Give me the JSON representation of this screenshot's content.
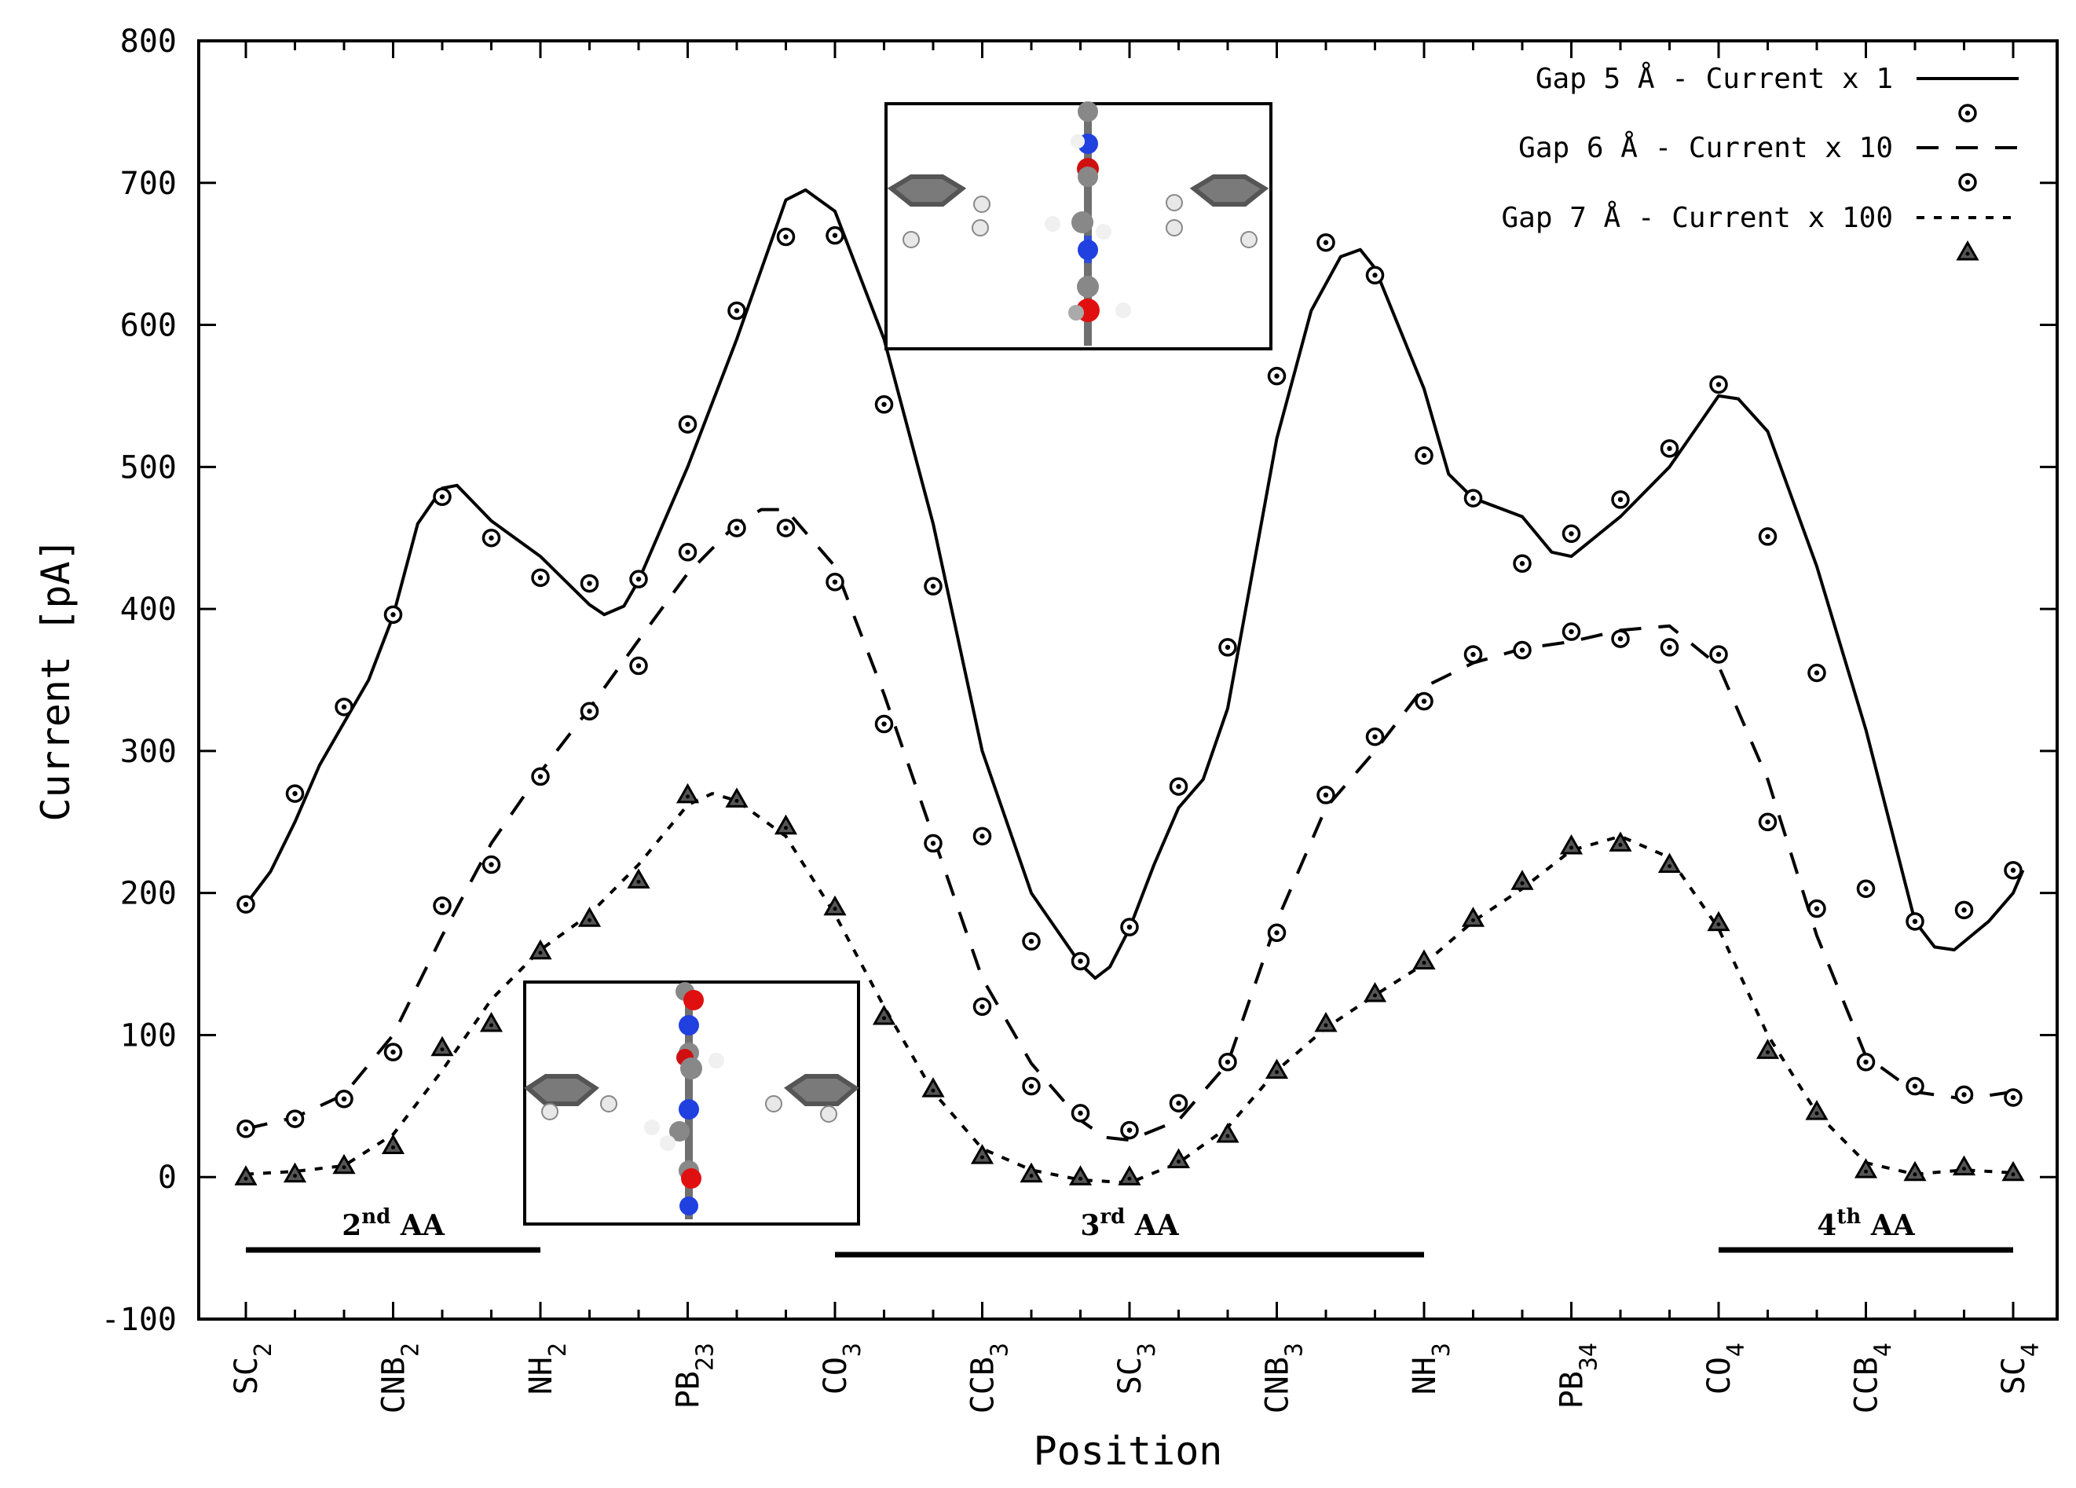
{
  "chart_data": {
    "type": "line",
    "title": "",
    "xlabel": "Position",
    "ylabel": "Current [pA]",
    "ylim": [
      -100,
      800
    ],
    "yticks": [
      -100,
      0,
      100,
      200,
      300,
      400,
      500,
      600,
      700,
      800
    ],
    "xticks": [
      {
        "base": "SC",
        "sub": "2",
        "x": 0
      },
      {
        "base": "CNB",
        "sub": "2",
        "x": 3
      },
      {
        "base": "NH",
        "sub": "2",
        "x": 6
      },
      {
        "base": "PB",
        "sub": "23",
        "x": 9
      },
      {
        "base": "CO",
        "sub": "3",
        "x": 12
      },
      {
        "base": "CCB",
        "sub": "3",
        "x": 15
      },
      {
        "base": "SC",
        "sub": "3",
        "x": 18
      },
      {
        "base": "CNB",
        "sub": "3",
        "x": 21
      },
      {
        "base": "NH",
        "sub": "3",
        "x": 24
      },
      {
        "base": "PB",
        "sub": "34",
        "x": 27
      },
      {
        "base": "CO",
        "sub": "4",
        "x": 30
      },
      {
        "base": "CCB",
        "sub": "4",
        "x": 33
      },
      {
        "base": "SC",
        "sub": "4",
        "x": 36
      }
    ],
    "xlim": [
      -1,
      37
    ],
    "series": [
      {
        "name": "Gap 5 Å - Current x 1",
        "line_style": "solid",
        "marker": "circle",
        "points": [
          192,
          270,
          331,
          396,
          479,
          450,
          422,
          418,
          421,
          530,
          610,
          662,
          663,
          544,
          416,
          240,
          166,
          152,
          176,
          275,
          373,
          564,
          658,
          635,
          508,
          478,
          432,
          453,
          477,
          513,
          558,
          451,
          355,
          203,
          180,
          188,
          216
        ],
        "curve": [
          [
            0,
            192
          ],
          [
            0.5,
            215
          ],
          [
            1,
            250
          ],
          [
            1.5,
            290
          ],
          [
            2,
            320
          ],
          [
            2.5,
            350
          ],
          [
            3,
            395
          ],
          [
            3.5,
            460
          ],
          [
            4,
            485
          ],
          [
            4.3,
            487
          ],
          [
            5,
            462
          ],
          [
            6,
            437
          ],
          [
            6.5,
            420
          ],
          [
            7,
            403
          ],
          [
            7.3,
            396
          ],
          [
            7.7,
            402
          ],
          [
            8,
            420
          ],
          [
            9,
            500
          ],
          [
            10,
            590
          ],
          [
            11,
            688
          ],
          [
            11.4,
            695
          ],
          [
            12,
            680
          ],
          [
            13,
            590
          ],
          [
            14,
            460
          ],
          [
            15,
            300
          ],
          [
            16,
            200
          ],
          [
            17,
            150
          ],
          [
            17.3,
            140
          ],
          [
            17.6,
            148
          ],
          [
            18,
            175
          ],
          [
            18.5,
            220
          ],
          [
            19,
            260
          ],
          [
            19.5,
            280
          ],
          [
            20,
            330
          ],
          [
            21,
            520
          ],
          [
            21.7,
            610
          ],
          [
            22.3,
            648
          ],
          [
            22.7,
            653
          ],
          [
            23,
            640
          ],
          [
            24,
            555
          ],
          [
            24.5,
            495
          ],
          [
            25,
            478
          ],
          [
            26,
            465
          ],
          [
            26.6,
            440
          ],
          [
            27,
            437
          ],
          [
            28,
            465
          ],
          [
            29,
            500
          ],
          [
            30,
            550
          ],
          [
            30.4,
            548
          ],
          [
            31,
            525
          ],
          [
            32,
            430
          ],
          [
            33,
            315
          ],
          [
            34,
            180
          ],
          [
            34.4,
            162
          ],
          [
            34.8,
            160
          ],
          [
            35.5,
            180
          ],
          [
            36,
            200
          ],
          [
            36.2,
            216
          ]
        ]
      },
      {
        "name": "Gap 6 Å - Current x 10",
        "line_style": "dashed",
        "marker": "circle",
        "points": [
          34,
          41,
          55,
          88,
          191,
          220,
          282,
          328,
          360,
          440,
          457,
          457,
          419,
          319,
          235,
          120,
          64,
          45,
          33,
          52,
          81,
          172,
          269,
          310,
          335,
          368,
          371,
          384,
          379,
          373,
          368,
          250,
          189,
          81,
          64,
          58,
          56
        ],
        "curve": [
          [
            0,
            34
          ],
          [
            1,
            42
          ],
          [
            2,
            58
          ],
          [
            3,
            100
          ],
          [
            4,
            170
          ],
          [
            5,
            235
          ],
          [
            6,
            285
          ],
          [
            7,
            330
          ],
          [
            8,
            378
          ],
          [
            9,
            425
          ],
          [
            10,
            460
          ],
          [
            10.5,
            470
          ],
          [
            11,
            470
          ],
          [
            12,
            430
          ],
          [
            13,
            340
          ],
          [
            14,
            240
          ],
          [
            15,
            140
          ],
          [
            16,
            80
          ],
          [
            17,
            40
          ],
          [
            17.5,
            28
          ],
          [
            18,
            26
          ],
          [
            19,
            40
          ],
          [
            20,
            80
          ],
          [
            21,
            180
          ],
          [
            22,
            260
          ],
          [
            23,
            300
          ],
          [
            24,
            345
          ],
          [
            25,
            362
          ],
          [
            26,
            372
          ],
          [
            27,
            377
          ],
          [
            28,
            385
          ],
          [
            29,
            388
          ],
          [
            30,
            360
          ],
          [
            31,
            280
          ],
          [
            32,
            170
          ],
          [
            33,
            85
          ],
          [
            34,
            60
          ],
          [
            35,
            55
          ],
          [
            36,
            60
          ]
        ]
      },
      {
        "name": "Gap 7 Å - Current x 100",
        "line_style": "dotted",
        "marker": "triangle",
        "points": [
          0,
          2,
          8,
          22,
          91,
          108,
          159,
          182,
          209,
          269,
          266,
          247,
          190,
          113,
          62,
          15,
          2,
          0,
          0,
          12,
          30,
          75,
          108,
          129,
          152,
          182,
          208,
          233,
          235,
          220,
          179,
          89,
          46,
          5,
          3,
          7,
          3
        ],
        "curve": [
          [
            0,
            2
          ],
          [
            1,
            4
          ],
          [
            2,
            8
          ],
          [
            3,
            30
          ],
          [
            4,
            75
          ],
          [
            5,
            125
          ],
          [
            6,
            160
          ],
          [
            7,
            185
          ],
          [
            8,
            220
          ],
          [
            9,
            262
          ],
          [
            9.5,
            270
          ],
          [
            10,
            265
          ],
          [
            11,
            240
          ],
          [
            12,
            185
          ],
          [
            13,
            120
          ],
          [
            14,
            60
          ],
          [
            15,
            20
          ],
          [
            16,
            5
          ],
          [
            17,
            -2
          ],
          [
            18,
            -4
          ],
          [
            19,
            10
          ],
          [
            20,
            35
          ],
          [
            21,
            75
          ],
          [
            22,
            105
          ],
          [
            23,
            128
          ],
          [
            24,
            150
          ],
          [
            25,
            180
          ],
          [
            26,
            203
          ],
          [
            27,
            230
          ],
          [
            28,
            240
          ],
          [
            29,
            225
          ],
          [
            30,
            175
          ],
          [
            31,
            100
          ],
          [
            32,
            45
          ],
          [
            33,
            10
          ],
          [
            34,
            2
          ],
          [
            35,
            5
          ],
          [
            36,
            3
          ]
        ]
      }
    ],
    "legend_position": "top-right",
    "aa_labels": [
      {
        "label_base": "2",
        "label_sup": "nd",
        "label_rest": " AA",
        "x_start": 0,
        "x_end": 6
      },
      {
        "label_base": "3",
        "label_sup": "rd",
        "label_rest": " AA",
        "x_start": 12,
        "x_end": 24
      },
      {
        "label_base": "4",
        "label_sup": "th",
        "label_rest": " AA",
        "x_start": 30,
        "x_end": 36
      }
    ]
  }
}
